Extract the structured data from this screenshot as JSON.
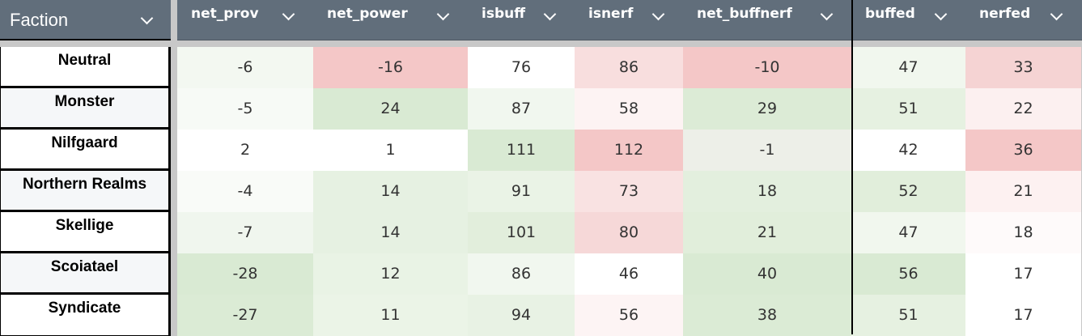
{
  "faction_header": {
    "label": "Faction",
    "icon": "chevron-down-icon"
  },
  "columns": [
    {
      "label": "net_prov"
    },
    {
      "label": "net_power"
    },
    {
      "label": "isbuff"
    },
    {
      "label": "isnerf"
    },
    {
      "label": "net_buffnerf"
    },
    {
      "label": "buffed"
    },
    {
      "label": "nerfed"
    }
  ],
  "colors": {
    "header_bg": "#616e7b",
    "green_max": "#d9ead3",
    "red_max": "#f4c7c7"
  },
  "rows": [
    {
      "faction": "Neutral",
      "values": [
        "-6",
        "-16",
        "76",
        "86",
        "-10",
        "47",
        "33"
      ],
      "bg": [
        "#f3f8f1",
        "#f4c7c7",
        "#ffffff",
        "#f8dede",
        "#f4c7c7",
        "#f1f7ee",
        "#f5d3d3"
      ]
    },
    {
      "faction": "Monster",
      "values": [
        "-5",
        "24",
        "87",
        "58",
        "29",
        "51",
        "22"
      ],
      "bg": [
        "#f7faf6",
        "#d9ead3",
        "#f1f7ef",
        "#fdf3f3",
        "#dcebd6",
        "#e6f1e1",
        "#fcf0f0"
      ]
    },
    {
      "faction": "Nilfgaard",
      "values": [
        "2",
        "1",
        "111",
        "112",
        "-1",
        "42",
        "36"
      ],
      "bg": [
        "#ffffff",
        "#ffffff",
        "#d9ead3",
        "#f4c7c7",
        "#edefe8",
        "#ffffff",
        "#f4c7c7"
      ]
    },
    {
      "faction": "Northern Realms",
      "values": [
        "-4",
        "14",
        "91",
        "73",
        "18",
        "52",
        "21"
      ],
      "bg": [
        "#f9fbf8",
        "#e6f1e2",
        "#eaf3e6",
        "#f9e2e2",
        "#e3efde",
        "#e1eedb",
        "#fdf1f1"
      ]
    },
    {
      "faction": "Skellige",
      "values": [
        "-7",
        "14",
        "101",
        "80",
        "21",
        "47",
        "18"
      ],
      "bg": [
        "#f0f6ee",
        "#e6f1e2",
        "#e2eedc",
        "#f6d8d8",
        "#e1eedb",
        "#f1f7ee",
        "#fefafa"
      ]
    },
    {
      "faction": "Scoiatael",
      "values": [
        "-28",
        "12",
        "86",
        "46",
        "40",
        "56",
        "17"
      ],
      "bg": [
        "#d9ead3",
        "#e9f3e5",
        "#f1f7ef",
        "#ffffff",
        "#d9ead3",
        "#d9ead3",
        "#ffffff"
      ]
    },
    {
      "faction": "Syndicate",
      "values": [
        "-27",
        "11",
        "94",
        "56",
        "38",
        "51",
        "17"
      ],
      "bg": [
        "#dbebd5",
        "#ebf4e7",
        "#e8f2e4",
        "#fdf4f4",
        "#dbebd5",
        "#e6f1e1",
        "#ffffff"
      ]
    }
  ]
}
